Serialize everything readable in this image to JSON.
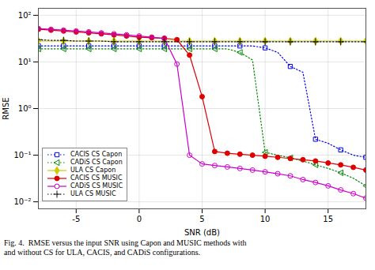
{
  "chart_data": {
    "type": "line",
    "xlabel": "SNR (dB)",
    "ylabel": "RMSE",
    "caption": "Fig. 4.  RMSE versus the input SNR using Capon and MUSIC methods with\nand without CS for ULA, CACIS, and CADiS configurations.",
    "log": "y",
    "grid": true,
    "legend": "lower left",
    "xlim": [
      -8,
      18
    ],
    "xticks": [
      -5,
      0,
      5,
      10,
      15
    ],
    "ylim": [
      0.007079457843841374,
      141.25375446227542
    ],
    "yticks": [
      {
        "value": 0.01,
        "label": "10⁻²"
      },
      {
        "value": 0.1,
        "label": "10⁻¹"
      },
      {
        "value": 1,
        "label": "10⁰"
      },
      {
        "value": 10,
        "label": "10¹"
      },
      {
        "value": 100,
        "label": "10²"
      }
    ],
    "x": [
      -8,
      -7,
      -6,
      -5,
      -4,
      -3,
      -2,
      -1,
      0,
      1,
      2,
      3,
      4,
      5,
      6,
      7,
      8,
      9,
      10,
      11,
      12,
      13,
      14,
      15,
      16,
      17,
      18
    ],
    "series": [
      {
        "name": "CACIS CS Capon",
        "color": "#0000EE",
        "marker": "square-open",
        "line_style": "dotted",
        "values": [
          22,
          22,
          22,
          22,
          22,
          22,
          22,
          22,
          22,
          22,
          22,
          22,
          22,
          22,
          22,
          22,
          22,
          22,
          20,
          16,
          8,
          6,
          0.22,
          0.18,
          0.13,
          0.1,
          0.09
        ]
      },
      {
        "name": "CADiS CS Capon",
        "color": "#008800",
        "marker": "triangle-left-open",
        "line_style": "dotted",
        "values": [
          19,
          19,
          19,
          19,
          19,
          19,
          19,
          19,
          19,
          19,
          19,
          19,
          19,
          19,
          19,
          19,
          16,
          11,
          0.115,
          0.1,
          0.088,
          0.075,
          0.062,
          0.052,
          0.042,
          0.032,
          0.022
        ]
      },
      {
        "name": "ULA CS Capon",
        "color": "#CCCC00",
        "marker": "diamond",
        "line_style": "solid",
        "values": [
          28,
          28,
          28,
          28,
          28,
          28,
          28,
          28,
          28,
          28,
          28,
          28,
          28,
          28,
          28,
          28,
          28,
          28,
          28,
          28,
          28,
          28,
          28,
          28,
          28,
          28,
          28
        ]
      },
      {
        "name": "CACIS CS MUSIC",
        "color": "#DD0000",
        "marker": "circle",
        "line_style": "solid",
        "values": [
          50,
          48,
          46,
          44,
          42,
          40,
          38,
          36,
          34,
          33,
          32,
          30,
          14,
          1.8,
          0.12,
          0.11,
          0.105,
          0.1,
          0.095,
          0.09,
          0.085,
          0.08,
          0.075,
          0.068,
          0.062,
          0.055,
          0.048
        ]
      },
      {
        "name": "CADiS CS MUSIC",
        "color": "#CC00CC",
        "marker": "circle-open",
        "line_style": "solid",
        "values": [
          52,
          50,
          48,
          46,
          44,
          42,
          40,
          38,
          36,
          34,
          32,
          9.0,
          0.1,
          0.065,
          0.06,
          0.056,
          0.052,
          0.048,
          0.044,
          0.04,
          0.036,
          0.03,
          0.026,
          0.022,
          0.018,
          0.015,
          0.012
        ]
      },
      {
        "name": "ULA CS MUSIC",
        "color": "#111111",
        "marker": "plus",
        "line_style": "dotted",
        "values": [
          30,
          29,
          29,
          28,
          28,
          28,
          27,
          27,
          27,
          27,
          27,
          27,
          27,
          27,
          27,
          27,
          27,
          27,
          27,
          27,
          27,
          27,
          27,
          27,
          27,
          27,
          27
        ]
      }
    ]
  }
}
